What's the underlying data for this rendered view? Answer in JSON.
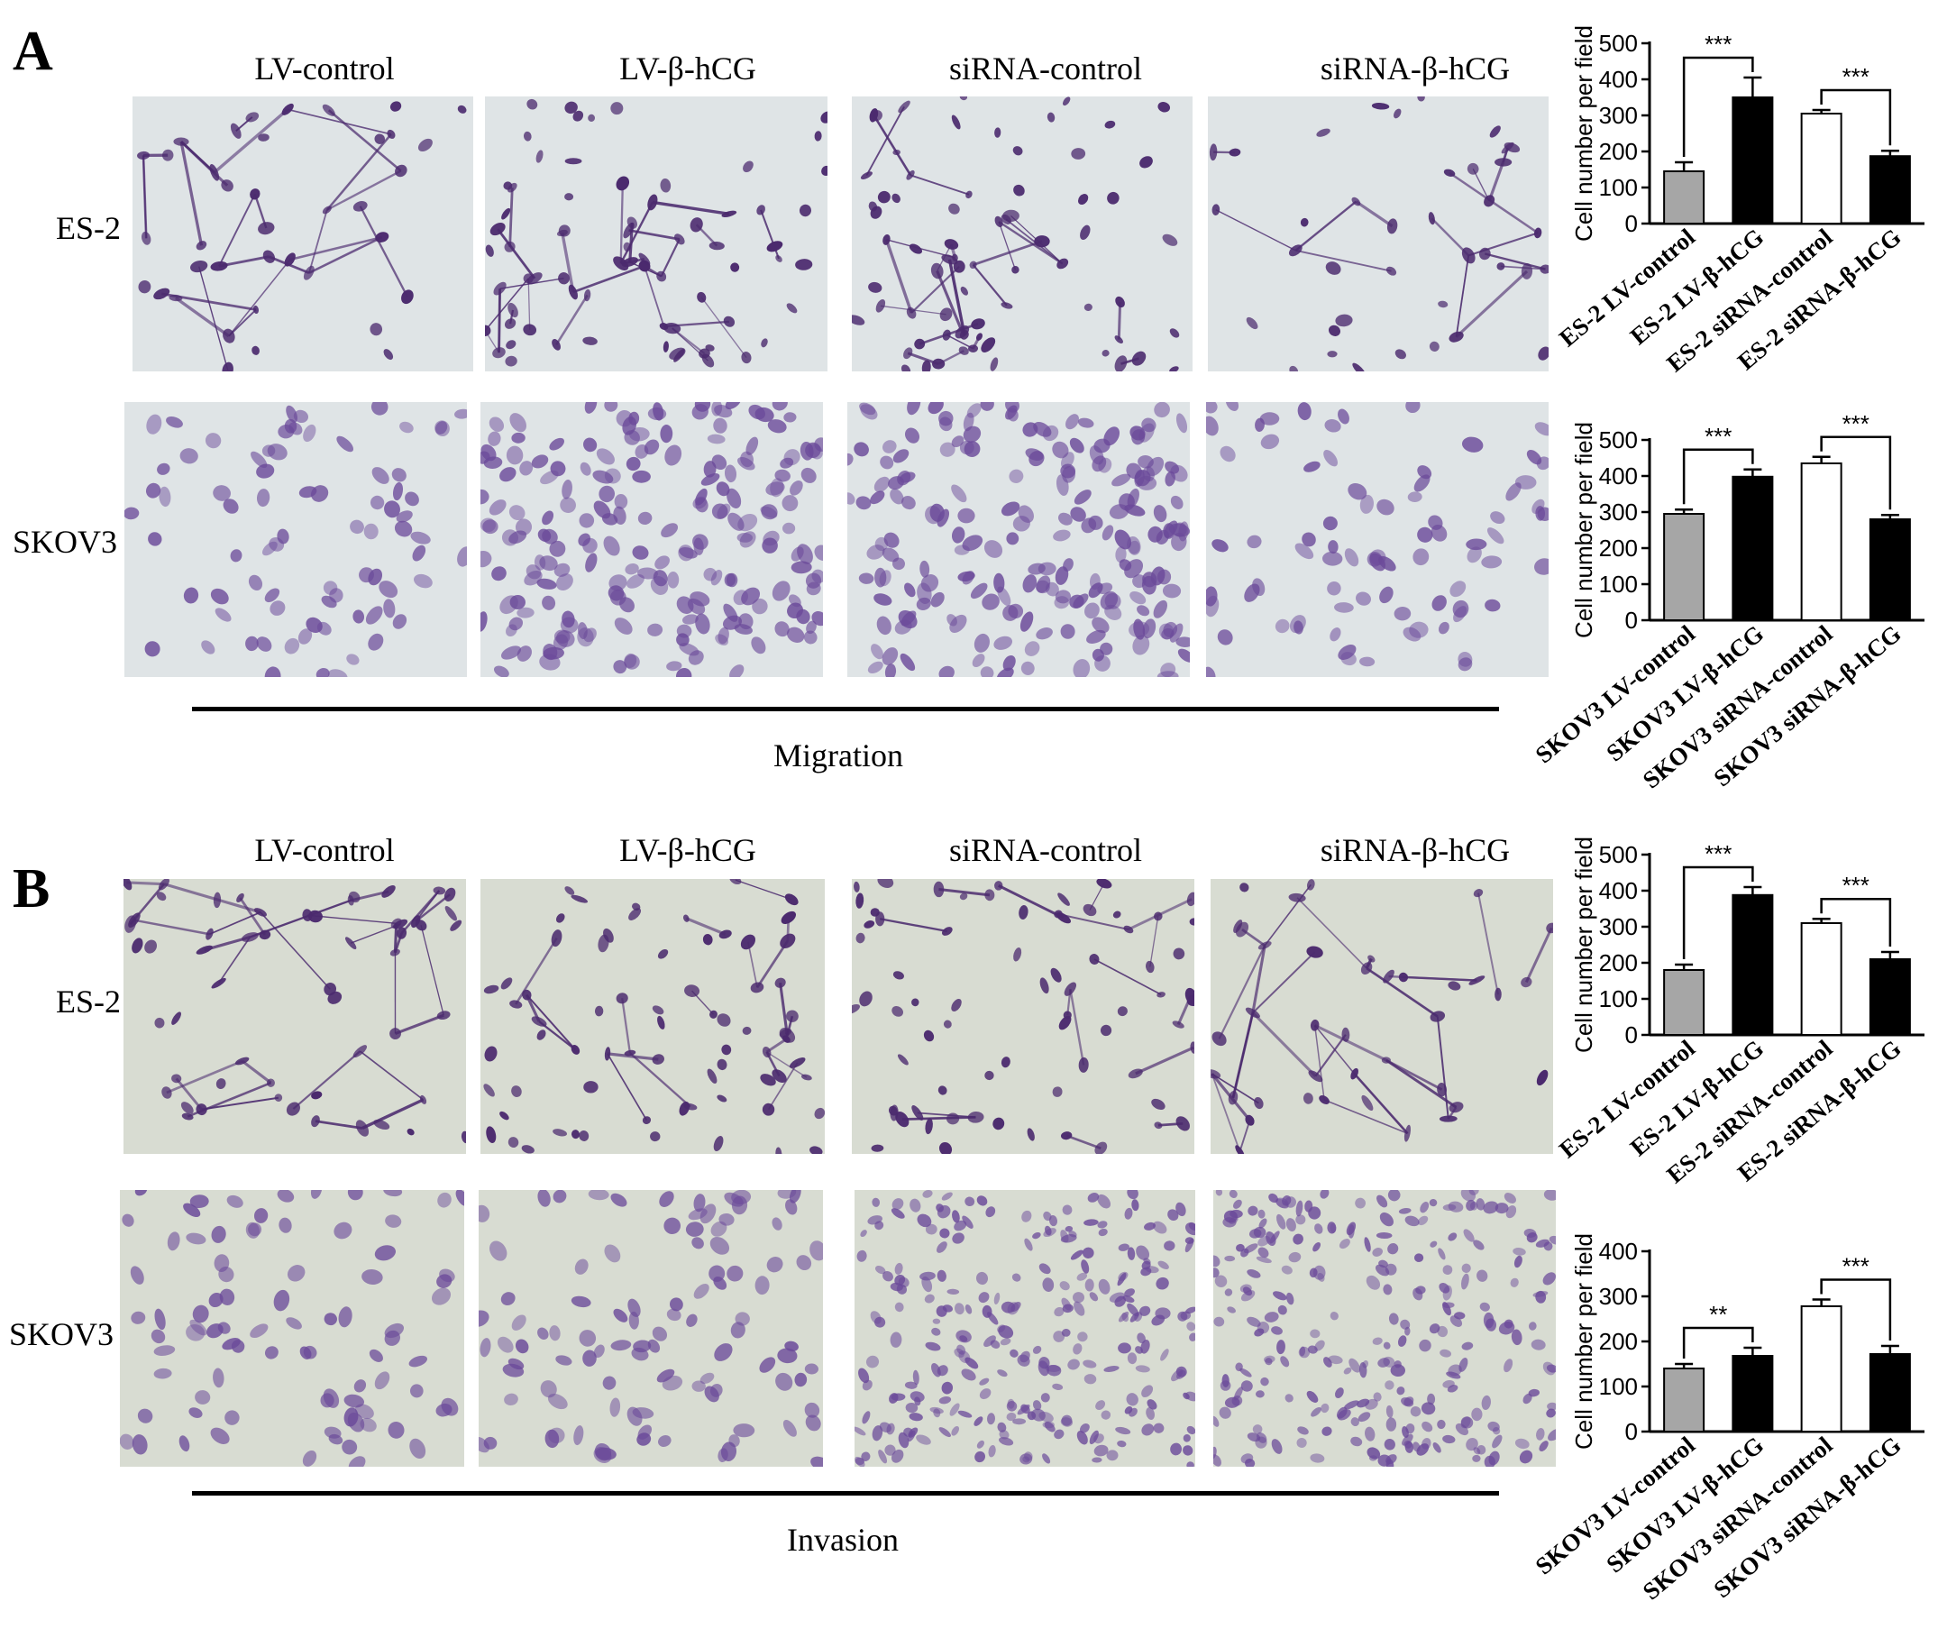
{
  "figure": {
    "panels": [
      {
        "letter": "A",
        "columns": [
          "LV-control",
          "LV-β-hCG",
          "siRNA-control",
          "siRNA-β-hCG"
        ],
        "rows": [
          "ES-2",
          "SKOV3"
        ],
        "caption": "Migration",
        "cell_color": "#4b2a6e",
        "background_color": "#dfe4e6"
      },
      {
        "letter": "B",
        "columns": [
          "LV-control",
          "LV-β-hCG",
          "siRNA-control",
          "siRNA-β-hCG"
        ],
        "rows": [
          "ES-2",
          "SKOV3"
        ],
        "caption": "Invasion",
        "cell_color": "#4b2a6e",
        "background_color": "#d8dcd2"
      }
    ]
  },
  "chart_data": [
    {
      "type": "bar",
      "ylabel": "Cell number per field",
      "ylim": [
        0,
        500
      ],
      "yticks": [
        0,
        100,
        200,
        300,
        400,
        500
      ],
      "categories": [
        "ES-2 LV-control",
        "ES-2 LV-β-hCG",
        "ES-2 siRNA-control",
        "ES-2 siRNA-β-hCG"
      ],
      "values": [
        145,
        350,
        305,
        187
      ],
      "errors": [
        25,
        55,
        10,
        15
      ],
      "bar_colors": [
        "#a6a6a6",
        "#000000",
        "#ffffff",
        "#000000"
      ],
      "significance": [
        {
          "between": [
            0,
            1
          ],
          "label": "***"
        },
        {
          "between": [
            2,
            3
          ],
          "label": "***"
        }
      ]
    },
    {
      "type": "bar",
      "ylabel": "Cell number per field",
      "ylim": [
        0,
        500
      ],
      "yticks": [
        0,
        100,
        200,
        300,
        400,
        500
      ],
      "categories": [
        "SKOV3 LV-control",
        "SKOV3 LV-β-hCG",
        "SKOV3 siRNA-control",
        "SKOV3 siRNA-β-hCG"
      ],
      "values": [
        295,
        398,
        435,
        280
      ],
      "errors": [
        12,
        20,
        18,
        12
      ],
      "bar_colors": [
        "#a6a6a6",
        "#000000",
        "#ffffff",
        "#000000"
      ],
      "significance": [
        {
          "between": [
            0,
            1
          ],
          "label": "***"
        },
        {
          "between": [
            2,
            3
          ],
          "label": "***"
        }
      ]
    },
    {
      "type": "bar",
      "ylabel": "Cell number per field",
      "ylim": [
        0,
        500
      ],
      "yticks": [
        0,
        100,
        200,
        300,
        400,
        500
      ],
      "categories": [
        "ES-2 LV-control",
        "ES-2 LV-β-hCG",
        "ES-2 siRNA-control",
        "ES-2 siRNA-β-hCG"
      ],
      "values": [
        180,
        388,
        310,
        210
      ],
      "errors": [
        15,
        22,
        12,
        20
      ],
      "bar_colors": [
        "#a6a6a6",
        "#000000",
        "#ffffff",
        "#000000"
      ],
      "significance": [
        {
          "between": [
            0,
            1
          ],
          "label": "***"
        },
        {
          "between": [
            2,
            3
          ],
          "label": "***"
        }
      ]
    },
    {
      "type": "bar",
      "ylabel": "Cell number per field",
      "ylim": [
        0,
        400
      ],
      "yticks": [
        0,
        100,
        200,
        300,
        400
      ],
      "categories": [
        "SKOV3 LV-control",
        "SKOV3 LV-β-hCG",
        "SKOV3 siRNA-control",
        "SKOV3 siRNA-β-hCG"
      ],
      "values": [
        140,
        168,
        278,
        172
      ],
      "errors": [
        10,
        18,
        15,
        18
      ],
      "bar_colors": [
        "#a6a6a6",
        "#000000",
        "#ffffff",
        "#000000"
      ],
      "significance": [
        {
          "between": [
            0,
            1
          ],
          "label": "**"
        },
        {
          "between": [
            2,
            3
          ],
          "label": "***"
        }
      ]
    }
  ]
}
